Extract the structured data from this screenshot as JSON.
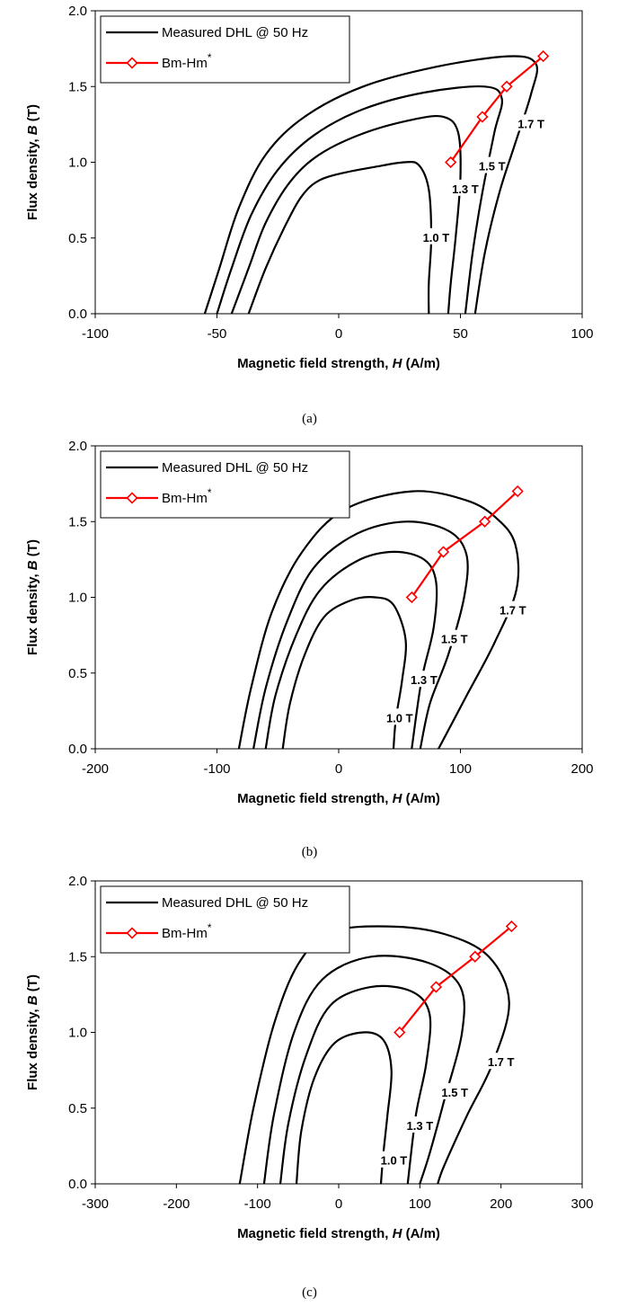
{
  "chart_data": [
    {
      "type": "line",
      "caption": "(a)",
      "xlabel_main": "Magnetic field strength, ",
      "xlabel_var": "H",
      "xlabel_unit": " (A/m)",
      "ylabel_main": "Flux density, ",
      "ylabel_var": "B",
      "ylabel_unit": " (T)",
      "xlim": [
        -100,
        100
      ],
      "ylim": [
        0,
        2.0
      ],
      "xticks": [
        -100,
        -50,
        0,
        50,
        100
      ],
      "xtick_labels": [
        "-100",
        "-50",
        "0",
        "50",
        "100"
      ],
      "yticks": [
        0,
        0.5,
        1.0,
        1.5,
        2.0
      ],
      "ytick_labels": [
        "0.0",
        "0.5",
        "1.0",
        "1.5",
        "2.0"
      ],
      "grid": false,
      "legend": {
        "placement": "top-left",
        "entries": [
          {
            "label": "Measured DHL @ 50 Hz",
            "sup": "",
            "color": "#000000",
            "marker": "none"
          },
          {
            "label": "Bm-Hm",
            "sup": "*",
            "color": "#ff0000",
            "marker": "open-diamond"
          }
        ]
      },
      "loops": [
        {
          "label": "1.0 T",
          "label_at": [
            40,
            0.5
          ],
          "points": [
            [
              -37,
              0
            ],
            [
              -30,
              0.3
            ],
            [
              -22,
              0.58
            ],
            [
              -15,
              0.78
            ],
            [
              -8,
              0.88
            ],
            [
              2,
              0.93
            ],
            [
              15,
              0.97
            ],
            [
              27,
              1.0
            ],
            [
              33,
              0.98
            ],
            [
              37,
              0.82
            ],
            [
              38,
              0.5
            ],
            [
              37,
              0.2
            ],
            [
              37,
              0
            ]
          ]
        },
        {
          "label": "1.3 T",
          "label_at": [
            52,
            0.82
          ],
          "points": [
            [
              -44,
              0
            ],
            [
              -37,
              0.3
            ],
            [
              -30,
              0.6
            ],
            [
              -20,
              0.87
            ],
            [
              -8,
              1.05
            ],
            [
              10,
              1.19
            ],
            [
              30,
              1.28
            ],
            [
              43,
              1.3
            ],
            [
              49,
              1.2
            ],
            [
              50,
              0.9
            ],
            [
              48,
              0.5
            ],
            [
              46,
              0.2
            ],
            [
              45,
              0
            ]
          ]
        },
        {
          "label": "1.5 T",
          "label_at": [
            63,
            0.97
          ],
          "points": [
            [
              -50,
              0
            ],
            [
              -44,
              0.3
            ],
            [
              -36,
              0.65
            ],
            [
              -25,
              0.95
            ],
            [
              -10,
              1.18
            ],
            [
              10,
              1.35
            ],
            [
              35,
              1.46
            ],
            [
              60,
              1.5
            ],
            [
              67,
              1.42
            ],
            [
              64,
              1.2
            ],
            [
              59,
              0.8
            ],
            [
              55,
              0.4
            ],
            [
              52,
              0
            ]
          ]
        },
        {
          "label": "1.7 T",
          "label_at": [
            79,
            1.25
          ],
          "points": [
            [
              -55,
              0
            ],
            [
              -49,
              0.3
            ],
            [
              -41,
              0.7
            ],
            [
              -30,
              1.05
            ],
            [
              -14,
              1.3
            ],
            [
              10,
              1.5
            ],
            [
              40,
              1.63
            ],
            [
              70,
              1.7
            ],
            [
              81,
              1.65
            ],
            [
              79,
              1.45
            ],
            [
              72,
              1.1
            ],
            [
              66,
              0.8
            ],
            [
              60,
              0.4
            ],
            [
              56,
              0
            ]
          ]
        }
      ],
      "series": [
        {
          "name": "Bm-Hm*",
          "x": [
            46,
            59,
            69,
            84
          ],
          "y": [
            1.0,
            1.3,
            1.5,
            1.7
          ]
        }
      ]
    },
    {
      "type": "line",
      "caption": "(b)",
      "xlabel_main": "Magnetic field strength, ",
      "xlabel_var": "H",
      "xlabel_unit": " (A/m)",
      "ylabel_main": "Flux density, ",
      "ylabel_var": "B",
      "ylabel_unit": " (T)",
      "xlim": [
        -200,
        200
      ],
      "ylim": [
        0,
        2.0
      ],
      "xticks": [
        -200,
        -100,
        0,
        100,
        200
      ],
      "xtick_labels": [
        "-200",
        "-100",
        "0",
        "100",
        "200"
      ],
      "yticks": [
        0,
        0.5,
        1.0,
        1.5,
        2.0
      ],
      "ytick_labels": [
        "0.0",
        "0.5",
        "1.0",
        "1.5",
        "2.0"
      ],
      "grid": false,
      "legend": {
        "placement": "top-left",
        "entries": [
          {
            "label": "Measured DHL @ 50 Hz",
            "sup": "",
            "color": "#000000",
            "marker": "none"
          },
          {
            "label": "Bm-Hm",
            "sup": "*",
            "color": "#ff0000",
            "marker": "open-diamond"
          }
        ]
      },
      "loops": [
        {
          "label": "1.0 T",
          "label_at": [
            50,
            0.2
          ],
          "points": [
            [
              -46,
              0
            ],
            [
              -40,
              0.3
            ],
            [
              -28,
              0.62
            ],
            [
              -12,
              0.87
            ],
            [
              10,
              0.98
            ],
            [
              30,
              1.0
            ],
            [
              45,
              0.95
            ],
            [
              55,
              0.72
            ],
            [
              52,
              0.45
            ],
            [
              47,
              0.2
            ],
            [
              45,
              0
            ]
          ]
        },
        {
          "label": "1.3 T",
          "label_at": [
            70,
            0.45
          ],
          "points": [
            [
              -60,
              0
            ],
            [
              -52,
              0.35
            ],
            [
              -35,
              0.75
            ],
            [
              -15,
              1.05
            ],
            [
              15,
              1.24
            ],
            [
              45,
              1.3
            ],
            [
              70,
              1.25
            ],
            [
              80,
              1.1
            ],
            [
              78,
              0.8
            ],
            [
              68,
              0.45
            ],
            [
              60,
              0
            ]
          ]
        },
        {
          "label": "1.5 T",
          "label_at": [
            95,
            0.72
          ],
          "points": [
            [
              -70,
              0
            ],
            [
              -60,
              0.4
            ],
            [
              -42,
              0.85
            ],
            [
              -20,
              1.2
            ],
            [
              15,
              1.42
            ],
            [
              55,
              1.5
            ],
            [
              90,
              1.44
            ],
            [
              105,
              1.28
            ],
            [
              103,
              1.0
            ],
            [
              90,
              0.62
            ],
            [
              75,
              0.3
            ],
            [
              67,
              0
            ]
          ]
        },
        {
          "label": "1.7 T",
          "label_at": [
            143,
            0.91
          ],
          "points": [
            [
              -82,
              0
            ],
            [
              -72,
              0.4
            ],
            [
              -55,
              0.9
            ],
            [
              -30,
              1.3
            ],
            [
              5,
              1.58
            ],
            [
              60,
              1.7
            ],
            [
              105,
              1.64
            ],
            [
              130,
              1.52
            ],
            [
              145,
              1.35
            ],
            [
              146,
              1.05
            ],
            [
              128,
              0.7
            ],
            [
              105,
              0.35
            ],
            [
              82,
              0
            ]
          ]
        }
      ],
      "series": [
        {
          "name": "Bm-Hm*",
          "x": [
            60,
            86,
            120,
            147
          ],
          "y": [
            1.0,
            1.3,
            1.5,
            1.7
          ]
        }
      ]
    },
    {
      "type": "line",
      "caption": "(c)",
      "xlabel_main": "Magnetic field strength, ",
      "xlabel_var": "H",
      "xlabel_unit": " (A/m)",
      "ylabel_main": "Flux density, ",
      "ylabel_var": "B",
      "ylabel_unit": " (T)",
      "xlim": [
        -300,
        300
      ],
      "ylim": [
        0,
        2.0
      ],
      "xticks": [
        -300,
        -200,
        -100,
        0,
        100,
        200,
        300
      ],
      "xtick_labels": [
        "-300",
        "-200",
        "-100",
        "0",
        "100",
        "200",
        "300"
      ],
      "yticks": [
        0,
        0.5,
        1.0,
        1.5,
        2.0
      ],
      "ytick_labels": [
        "0.0",
        "0.5",
        "1.0",
        "1.5",
        "2.0"
      ],
      "grid": false,
      "legend": {
        "placement": "top-left",
        "entries": [
          {
            "label": "Measured DHL @ 50 Hz",
            "sup": "",
            "color": "#000000",
            "marker": "none"
          },
          {
            "label": "Bm-Hm",
            "sup": "*",
            "color": "#ff0000",
            "marker": "open-diamond"
          }
        ]
      },
      "loops": [
        {
          "label": "1.0 T",
          "label_at": [
            68,
            0.15
          ],
          "points": [
            [
              -52,
              0
            ],
            [
              -46,
              0.35
            ],
            [
              -30,
              0.7
            ],
            [
              -5,
              0.93
            ],
            [
              30,
              1.0
            ],
            [
              55,
              0.95
            ],
            [
              65,
              0.75
            ],
            [
              60,
              0.45
            ],
            [
              55,
              0.2
            ],
            [
              52,
              0
            ]
          ]
        },
        {
          "label": "1.3 T",
          "label_at": [
            100,
            0.38
          ],
          "points": [
            [
              -72,
              0
            ],
            [
              -62,
              0.4
            ],
            [
              -40,
              0.85
            ],
            [
              -10,
              1.18
            ],
            [
              40,
              1.3
            ],
            [
              90,
              1.27
            ],
            [
              112,
              1.12
            ],
            [
              108,
              0.8
            ],
            [
              95,
              0.45
            ],
            [
              85,
              0
            ]
          ]
        },
        {
          "label": "1.5 T",
          "label_at": [
            143,
            0.6
          ],
          "points": [
            [
              -92,
              0
            ],
            [
              -80,
              0.45
            ],
            [
              -55,
              1.0
            ],
            [
              -20,
              1.35
            ],
            [
              40,
              1.5
            ],
            [
              110,
              1.46
            ],
            [
              150,
              1.3
            ],
            [
              152,
              1.0
            ],
            [
              130,
              0.55
            ],
            [
              112,
              0.2
            ],
            [
              100,
              0
            ]
          ]
        },
        {
          "label": "1.7 T",
          "label_at": [
            200,
            0.8
          ],
          "points": [
            [
              -122,
              0
            ],
            [
              -105,
              0.5
            ],
            [
              -80,
              1.05
            ],
            [
              -50,
              1.45
            ],
            [
              -10,
              1.66
            ],
            [
              60,
              1.7
            ],
            [
              130,
              1.65
            ],
            [
              185,
              1.5
            ],
            [
              210,
              1.2
            ],
            [
              190,
              0.8
            ],
            [
              158,
              0.45
            ],
            [
              130,
              0.12
            ],
            [
              122,
              0
            ]
          ]
        }
      ],
      "series": [
        {
          "name": "Bm-Hm*",
          "x": [
            75,
            120,
            168,
            213
          ],
          "y": [
            1.0,
            1.3,
            1.5,
            1.7
          ]
        }
      ]
    }
  ]
}
